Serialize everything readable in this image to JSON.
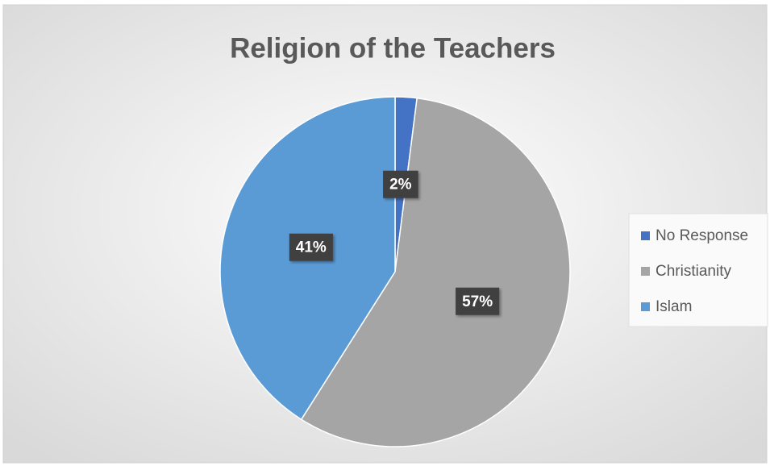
{
  "chart_data": {
    "type": "pie",
    "title": "Religion of the Teachers",
    "categories": [
      "No Response",
      "Christianity",
      "Islam"
    ],
    "values": [
      2,
      57,
      41
    ],
    "value_labels": [
      "2%",
      "57%",
      "41%"
    ],
    "colors": [
      "#4472c4",
      "#a5a5a5",
      "#5b9bd5"
    ],
    "legend": "right"
  }
}
